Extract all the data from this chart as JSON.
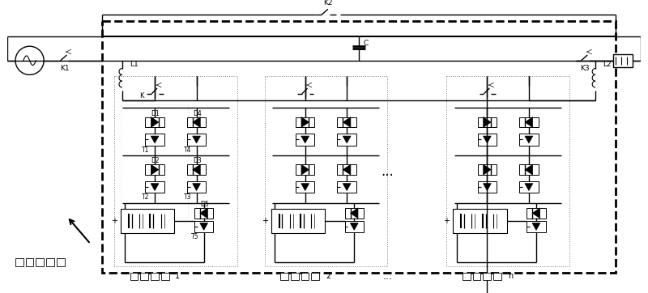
{
  "fig_width": 8.0,
  "fig_height": 3.62,
  "dpi": 100,
  "bg": "#ffffff",
  "lc": "#000000",
  "labels": {
    "K1": "K1",
    "K2": "K2",
    "K3": "K3",
    "K": "K",
    "C": "C",
    "L1": "L1",
    "L2": "L2",
    "D1": "D1",
    "D2": "D2",
    "D3": "D3",
    "D4": "D4",
    "D5": "D5",
    "T1": "T1",
    "T2": "T2",
    "T3": "T3",
    "T4": "T4",
    "T5": "T5",
    "unit1": "1",
    "unit2": "2",
    "unitn": "n",
    "dots": "..."
  }
}
